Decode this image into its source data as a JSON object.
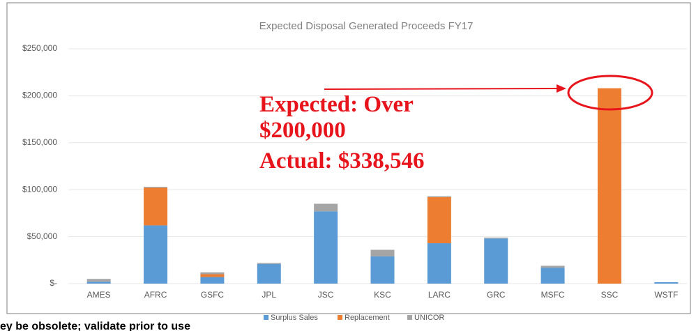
{
  "chart_data": {
    "type": "stacked_bar",
    "title": "Expected Disposal Generated Proceeds FY17",
    "categories": [
      "AMES",
      "AFRC",
      "GSFC",
      "JPL",
      "JSC",
      "KSC",
      "LARC",
      "GRC",
      "MSFC",
      "SSC",
      "WSTF"
    ],
    "series": [
      {
        "name": "Surplus Sales",
        "color": "#5b9bd5",
        "values": [
          2000,
          62000,
          7000,
          21000,
          77000,
          29000,
          43000,
          48000,
          17000,
          0,
          1500
        ]
      },
      {
        "name": "Replacement",
        "color": "#ed7d31",
        "values": [
          0,
          40000,
          3000,
          0,
          0,
          0,
          49000,
          0,
          0,
          208000,
          0
        ]
      },
      {
        "name": "UNICOR",
        "color": "#a5a5a5",
        "values": [
          3000,
          1000,
          2000,
          1000,
          8000,
          7000,
          1000,
          1000,
          2000,
          0,
          0
        ]
      }
    ],
    "ylim": [
      0,
      250000
    ],
    "yticks": [
      {
        "value": 0,
        "label": "$-"
      },
      {
        "value": 50000,
        "label": "$50,000"
      },
      {
        "value": 100000,
        "label": "$100,000"
      },
      {
        "value": 150000,
        "label": "$150,000"
      },
      {
        "value": 200000,
        "label": "$200,000"
      },
      {
        "value": 250000,
        "label": "$250,000"
      }
    ],
    "grid": true,
    "legend": "bottom",
    "annotations": [
      "Expected: Over",
      "$200,000",
      "Actual: $338,546"
    ],
    "annotation_color": "#e8141b"
  },
  "footer": "ey be obsolete; validate prior to use"
}
